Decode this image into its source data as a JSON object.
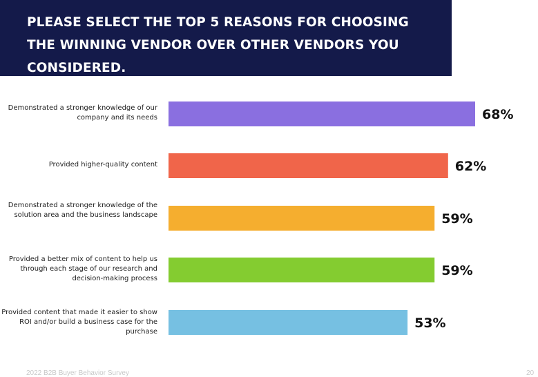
{
  "chart_data": {
    "type": "bar",
    "orientation": "horizontal",
    "title": "PLEASE SELECT THE TOP 5 REASONS FOR CHOOSING THE WINNING VENDOR OVER OTHER VENDORS YOU CONSIDERED.",
    "categories": [
      "Demonstrated a stronger knowledge of our company and its needs",
      "Provided higher-quality content",
      "Demonstrated a stronger knowledge of the solution area and the business landscape",
      "Provided a better mix of content to help us through each stage of our research and decision-making process",
      "Provided content that made it easier to show ROI and/or build a business case for the purchase"
    ],
    "values": [
      68,
      62,
      59,
      59,
      53
    ],
    "value_labels": [
      "68%",
      "62%",
      "59%",
      "59%",
      "53%"
    ],
    "unit": "%",
    "colors": [
      "#8a6fe0",
      "#f0654a",
      "#f5ae2f",
      "#84cc30",
      "#76c0e2"
    ],
    "xlim": [
      0,
      100
    ],
    "grid": false,
    "legend": "none"
  },
  "labels": {
    "bar_0": "Demonstrated a stronger knowledge of our company and its needs",
    "bar_1": "Provided higher-quality content",
    "bar_2": "Demonstrated a stronger knowledge of the solution area and the business landscape",
    "bar_3": "Provided a better mix of content to help us through each stage of our research and decision-making process",
    "bar_4": "Provided content that made it easier to show ROI and/or build a business case for the purchase"
  },
  "footer": {
    "source": "2022 B2B Buyer Behavior Survey",
    "page": "20"
  },
  "colors": {
    "header_background": "#141a4a",
    "title_text": "#ffffff"
  }
}
